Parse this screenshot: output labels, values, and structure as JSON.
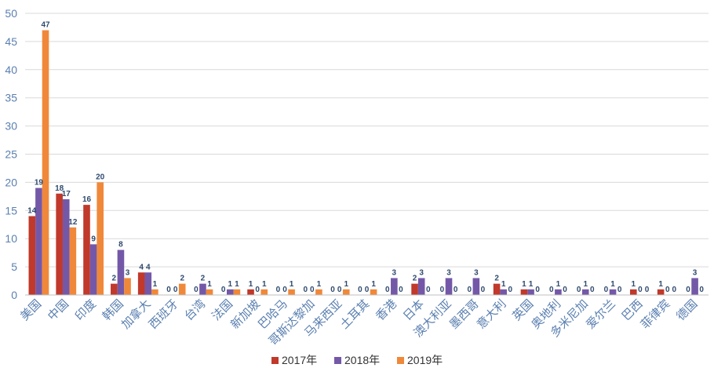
{
  "chart_data": {
    "type": "bar",
    "categories": [
      "美国",
      "中国",
      "印度",
      "韩国",
      "加拿大",
      "西班牙",
      "台湾",
      "法国",
      "新加坡",
      "巴哈马",
      "哥斯达黎加",
      "马来西亚",
      "土耳其",
      "香港",
      "日本",
      "澳大利亚",
      "墨西哥",
      "意大利",
      "英国",
      "奥地利",
      "多米尼加",
      "爱尔兰",
      "巴西",
      "菲律宾",
      "德国"
    ],
    "series": [
      {
        "name": "2017年",
        "color": "#c0392b",
        "values": [
          14,
          18,
          16,
          2,
          4,
          0,
          0,
          0,
          1,
          0,
          0,
          0,
          0,
          0,
          2,
          0,
          0,
          2,
          1,
          0,
          0,
          0,
          1,
          1,
          0
        ]
      },
      {
        "name": "2018年",
        "color": "#7458a8",
        "values": [
          19,
          17,
          9,
          8,
          4,
          0,
          2,
          1,
          0,
          0,
          0,
          0,
          0,
          3,
          3,
          3,
          3,
          1,
          1,
          1,
          1,
          1,
          0,
          0,
          3
        ]
      },
      {
        "name": "2019年",
        "color": "#f0883a",
        "values": [
          47,
          12,
          20,
          3,
          1,
          2,
          1,
          1,
          1,
          1,
          1,
          1,
          1,
          0,
          0,
          0,
          0,
          0,
          0,
          0,
          0,
          0,
          0,
          0,
          0
        ]
      }
    ],
    "ylim": [
      0,
      50
    ],
    "yticks": [
      0,
      5,
      10,
      15,
      20,
      25,
      30,
      35,
      40,
      45,
      50
    ],
    "grid": true,
    "legend": "bottom"
  }
}
